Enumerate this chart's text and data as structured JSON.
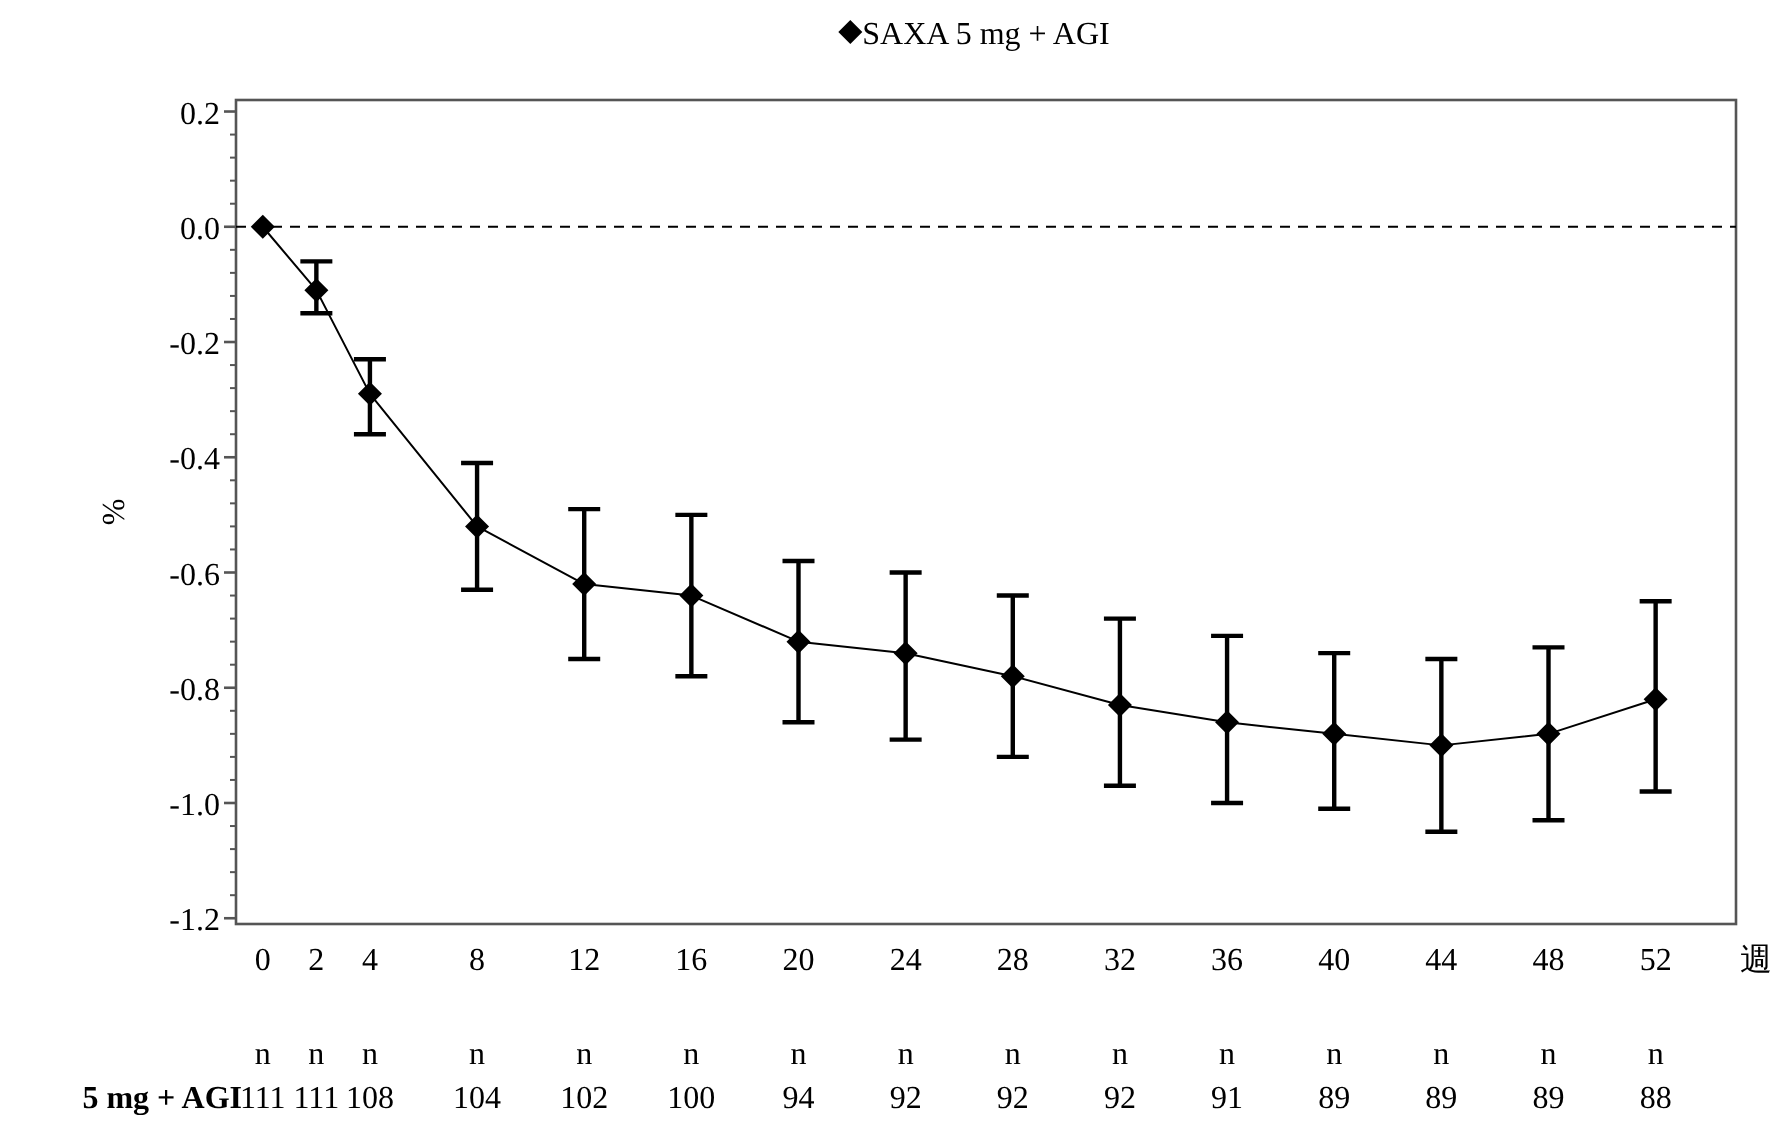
{
  "chart_data": {
    "type": "line",
    "x": [
      0,
      2,
      4,
      8,
      12,
      16,
      20,
      24,
      28,
      32,
      36,
      40,
      44,
      48,
      52
    ],
    "series": [
      {
        "name": "SAXA 5 mg + AGI",
        "color": "#000000",
        "values": [
          0,
          -0.11,
          -0.29,
          -0.52,
          -0.62,
          -0.64,
          -0.72,
          -0.74,
          -0.78,
          -0.83,
          -0.86,
          -0.88,
          -0.9,
          -0.88,
          -0.82
        ],
        "errors": [
          null,
          [
            -0.15,
            -0.06
          ],
          [
            -0.36,
            -0.23
          ],
          [
            -0.63,
            -0.41
          ],
          [
            -0.75,
            -0.49
          ],
          [
            -0.78,
            -0.5
          ],
          [
            -0.86,
            -0.58
          ],
          [
            -0.89,
            -0.6
          ],
          [
            -0.92,
            -0.64
          ],
          [
            -0.97,
            -0.68
          ],
          [
            -1.0,
            -0.71
          ],
          [
            -1.01,
            -0.74
          ],
          [
            -1.05,
            -0.75
          ],
          [
            -1.03,
            -0.73
          ],
          [
            -0.98,
            -0.65
          ]
        ]
      }
    ],
    "xlim": [
      -1,
      55
    ],
    "xticks": [
      0,
      2,
      4,
      8,
      12,
      16,
      20,
      24,
      28,
      32,
      36,
      40,
      44,
      48,
      52
    ],
    "ylim": [
      -1.21,
      0.22
    ],
    "yticks": [
      {
        "value": -1.2,
        "label": "-1.2"
      },
      {
        "value": -1.0,
        "label": "-1.0"
      },
      {
        "value": -0.8,
        "label": "-0.8"
      },
      {
        "value": -0.6,
        "label": "-0.6"
      },
      {
        "value": -0.4,
        "label": "-0.4"
      },
      {
        "value": -0.2,
        "label": "-0.2"
      },
      {
        "value": 0,
        "label": "0.0"
      },
      {
        "value": 0.2,
        "label": "0.2"
      }
    ],
    "xlabel": "週",
    "ylabel": "%",
    "ref_lines": [
      {
        "axis": "y",
        "value": 0,
        "line_style": "dashed",
        "color": "#000000"
      }
    ],
    "marker": "diamond",
    "line_style": "solid",
    "legend": "top",
    "grid": false,
    "annotations": [
      "5 mg + AGI",
      "n",
      "n",
      "n",
      "n",
      "n",
      "n",
      "n",
      "n",
      "n",
      "n",
      "n",
      "n",
      "n",
      "n",
      "n",
      "111",
      "111",
      "108",
      "104",
      "102",
      "100",
      "94",
      "92",
      "92",
      "92",
      "91",
      "89",
      "89",
      "89",
      "88"
    ]
  }
}
